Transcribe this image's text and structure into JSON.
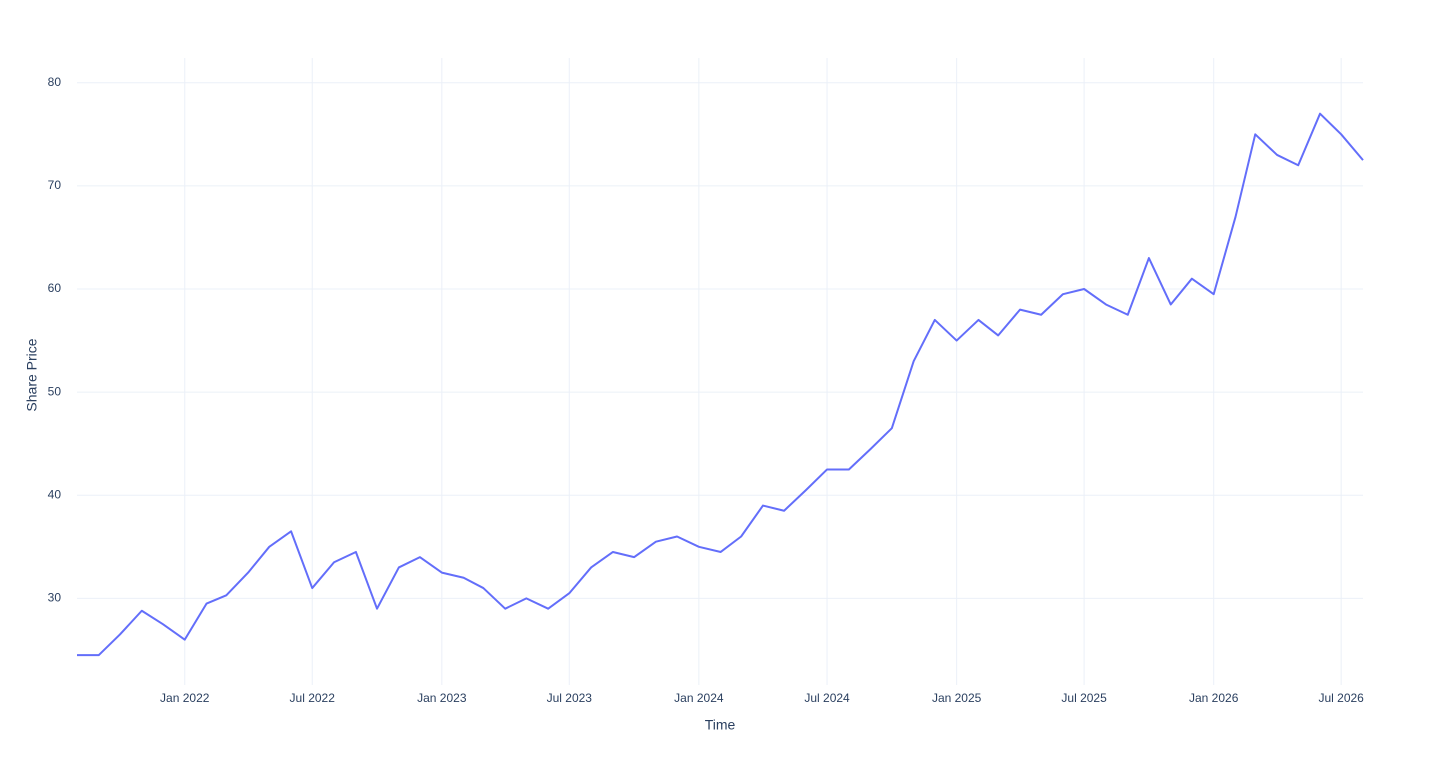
{
  "chart_data": {
    "type": "line",
    "x_label": "Time",
    "y_label": "Share Price",
    "x": [
      "2021-08",
      "2021-09",
      "2021-10",
      "2021-11",
      "2021-12",
      "2022-01",
      "2022-02",
      "2022-03",
      "2022-04",
      "2022-05",
      "2022-06",
      "2022-07",
      "2022-08",
      "2022-09",
      "2022-10",
      "2022-11",
      "2022-12",
      "2023-01",
      "2023-02",
      "2023-03",
      "2023-04",
      "2023-05",
      "2023-06",
      "2023-07",
      "2023-08",
      "2023-09",
      "2023-10",
      "2023-11",
      "2023-12",
      "2024-01",
      "2024-02",
      "2024-03",
      "2024-04",
      "2024-05",
      "2024-06",
      "2024-07",
      "2024-08",
      "2024-09",
      "2024-10",
      "2024-11",
      "2024-12",
      "2025-01",
      "2025-02",
      "2025-03",
      "2025-04",
      "2025-05",
      "2025-06",
      "2025-07",
      "2025-08",
      "2025-09",
      "2025-10",
      "2025-11",
      "2025-12",
      "2026-01",
      "2026-02",
      "2026-03",
      "2026-04",
      "2026-05",
      "2026-06",
      "2026-07",
      "2026-08"
    ],
    "series": [
      {
        "name": "Share Price",
        "color": "#636efa",
        "values": [
          24.5,
          24.5,
          26.5,
          28.8,
          27.5,
          26,
          29.5,
          30.3,
          32.5,
          35,
          36.5,
          31,
          33.5,
          34.5,
          29,
          33,
          34,
          32.5,
          32,
          31,
          29,
          30,
          29,
          30.5,
          33,
          34.5,
          34,
          35.5,
          36,
          35,
          34.5,
          36,
          39,
          38.5,
          40.5,
          42.5,
          42.5,
          44.5,
          46.5,
          53,
          57,
          55,
          57,
          55.5,
          58,
          57.5,
          59.5,
          60,
          58.5,
          57.5,
          63,
          58.5,
          61,
          59.5,
          67,
          75,
          73,
          72,
          77,
          75,
          72.5
        ]
      }
    ],
    "xlim": [
      "2021-08",
      "2026-08"
    ],
    "xticks": [
      {
        "value": "2022-01",
        "label": "Jan 2022"
      },
      {
        "value": "2022-07",
        "label": "Jul 2022"
      },
      {
        "value": "2023-01",
        "label": "Jan 2023"
      },
      {
        "value": "2023-07",
        "label": "Jul 2023"
      },
      {
        "value": "2024-01",
        "label": "Jan 2024"
      },
      {
        "value": "2024-07",
        "label": "Jul 2024"
      },
      {
        "value": "2025-01",
        "label": "Jan 2025"
      },
      {
        "value": "2025-07",
        "label": "Jul 2025"
      },
      {
        "value": "2026-01",
        "label": "Jan 2026"
      },
      {
        "value": "2026-07",
        "label": "Jul 2026"
      }
    ],
    "ylim": [
      21.6,
      82.4
    ],
    "yticks": [
      30,
      40,
      50,
      60,
      70,
      80
    ],
    "grid": true
  }
}
